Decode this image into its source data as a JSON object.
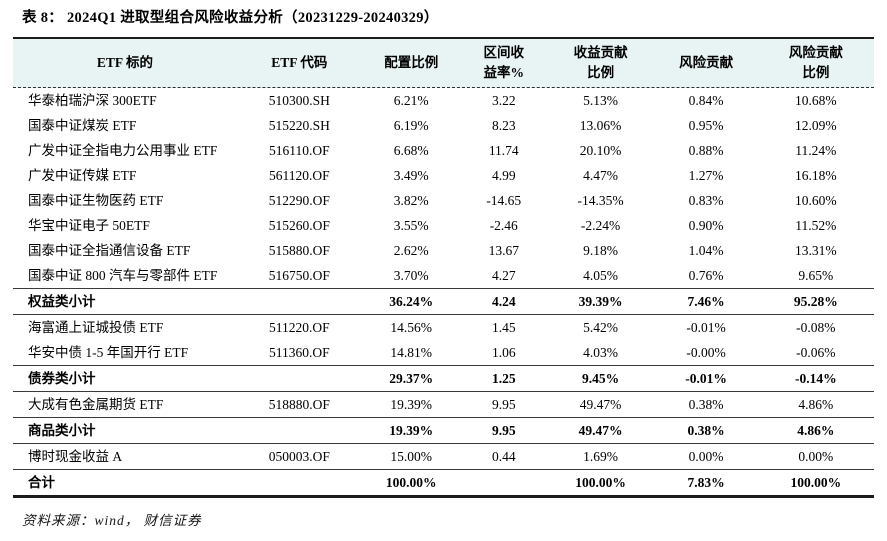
{
  "title": "表 8： 2024Q1 进取型组合风险收益分析（20231229-20240329）",
  "source": "资料来源：wind， 财信证券",
  "colors": {
    "header_bg": "#e8f3f3",
    "border_dark": "#1b1b1b",
    "rule_mid": "#3a3a3a"
  },
  "table": {
    "headers": [
      {
        "lines": [
          "ETF 标的"
        ]
      },
      {
        "lines": [
          "ETF 代码"
        ]
      },
      {
        "lines": [
          "配置比例"
        ]
      },
      {
        "lines": [
          "区间收",
          "益率%"
        ]
      },
      {
        "lines": [
          "收益贡献",
          "比例"
        ]
      },
      {
        "lines": [
          "风险贡献"
        ]
      },
      {
        "lines": [
          "风险贡献",
          "比例"
        ]
      }
    ],
    "rows": [
      {
        "style": "item",
        "cells": [
          "华泰柏瑞沪深 300ETF",
          "510300.SH",
          "6.21%",
          "3.22",
          "5.13%",
          "0.84%",
          "10.68%"
        ]
      },
      {
        "style": "item",
        "cells": [
          "国泰中证煤炭 ETF",
          "515220.SH",
          "6.19%",
          "8.23",
          "13.06%",
          "0.95%",
          "12.09%"
        ]
      },
      {
        "style": "item",
        "cells": [
          "广发中证全指电力公用事业 ETF",
          "516110.OF",
          "6.68%",
          "11.74",
          "20.10%",
          "0.88%",
          "11.24%"
        ]
      },
      {
        "style": "item",
        "cells": [
          "广发中证传媒 ETF",
          "561120.OF",
          "3.49%",
          "4.99",
          "4.47%",
          "1.27%",
          "16.18%"
        ]
      },
      {
        "style": "item",
        "cells": [
          "国泰中证生物医药 ETF",
          "512290.OF",
          "3.82%",
          "-14.65",
          "-14.35%",
          "0.83%",
          "10.60%"
        ]
      },
      {
        "style": "item",
        "cells": [
          "华宝中证电子 50ETF",
          "515260.OF",
          "3.55%",
          "-2.46",
          "-2.24%",
          "0.90%",
          "11.52%"
        ]
      },
      {
        "style": "item",
        "cells": [
          "国泰中证全指通信设备 ETF",
          "515880.OF",
          "2.62%",
          "13.67",
          "9.18%",
          "1.04%",
          "13.31%"
        ]
      },
      {
        "style": "item",
        "cells": [
          "国泰中证 800 汽车与零部件 ETF",
          "516750.OF",
          "3.70%",
          "4.27",
          "4.05%",
          "0.76%",
          "9.65%"
        ]
      },
      {
        "style": "subtotal",
        "cells": [
          "权益类小计",
          "",
          "36.24%",
          "4.24",
          "39.39%",
          "7.46%",
          "95.28%"
        ]
      },
      {
        "style": "item",
        "cells": [
          "海富通上证城投债 ETF",
          "511220.OF",
          "14.56%",
          "1.45",
          "5.42%",
          "-0.01%",
          "-0.08%"
        ]
      },
      {
        "style": "item",
        "cells": [
          "华安中债 1-5 年国开行 ETF",
          "511360.OF",
          "14.81%",
          "1.06",
          "4.03%",
          "-0.00%",
          "-0.06%"
        ]
      },
      {
        "style": "subtotal",
        "cells": [
          "债券类小计",
          "",
          "29.37%",
          "1.25",
          "9.45%",
          "-0.01%",
          "-0.14%"
        ]
      },
      {
        "style": "item",
        "cells": [
          "大成有色金属期货 ETF",
          "518880.OF",
          "19.39%",
          "9.95",
          "49.47%",
          "0.38%",
          "4.86%"
        ]
      },
      {
        "style": "subtotal",
        "cells": [
          "商品类小计",
          "",
          "19.39%",
          "9.95",
          "49.47%",
          "0.38%",
          "4.86%"
        ]
      },
      {
        "style": "item",
        "cells": [
          "博时现金收益 A",
          "050003.OF",
          "15.00%",
          "0.44",
          "1.69%",
          "0.00%",
          "0.00%"
        ]
      },
      {
        "style": "total",
        "cells": [
          "合计",
          "",
          "100.00%",
          "",
          "100.00%",
          "7.83%",
          "100.00%"
        ]
      }
    ]
  }
}
